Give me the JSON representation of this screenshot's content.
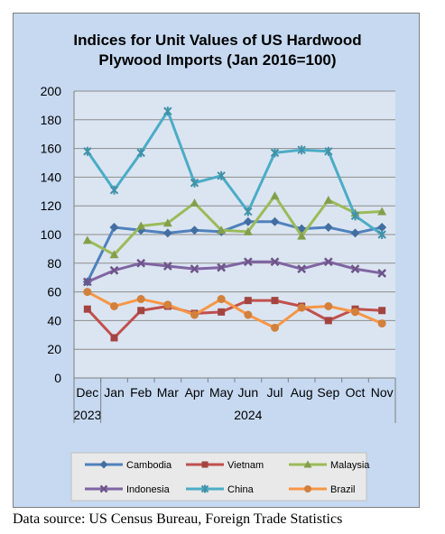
{
  "chart_data": {
    "type": "line",
    "title_lines": [
      "Indices for Unit Values of US Hardwood",
      "Plywood Imports (Jan 2016=100)"
    ],
    "categories": [
      "Dec",
      "Jan",
      "Feb",
      "Mar",
      "Apr",
      "May",
      "Jun",
      "Jul",
      "Aug",
      "Sep",
      "Oct",
      "Nov"
    ],
    "year_labels": [
      {
        "label": "2023",
        "start": 0,
        "end": 0
      },
      {
        "label": "2024",
        "start": 1,
        "end": 11
      }
    ],
    "ylim": [
      0,
      200
    ],
    "yticks": [
      0,
      20,
      40,
      60,
      80,
      100,
      120,
      140,
      160,
      180,
      200
    ],
    "grid": true,
    "legend_position": "bottom",
    "series": [
      {
        "name": "Cambodia",
        "color": "#4f81bd",
        "marker": "diamond",
        "values": [
          67,
          105,
          103,
          101,
          103,
          102,
          109,
          109,
          104,
          105,
          101,
          105
        ]
      },
      {
        "name": "Vietnam",
        "color": "#c0504d",
        "marker": "square",
        "values": [
          48,
          28,
          47,
          50,
          45,
          46,
          54,
          54,
          50,
          40,
          48,
          47
        ]
      },
      {
        "name": "Malaysia",
        "color": "#9bbb59",
        "marker": "triangle",
        "values": [
          96,
          86,
          106,
          108,
          122,
          103,
          102,
          127,
          99,
          124,
          115,
          116
        ]
      },
      {
        "name": "Indonesia",
        "color": "#8064a2",
        "marker": "x",
        "values": [
          67,
          75,
          80,
          78,
          76,
          77,
          81,
          81,
          76,
          81,
          76,
          73
        ]
      },
      {
        "name": "China",
        "color": "#4bacc6",
        "marker": "star",
        "values": [
          158,
          131,
          157,
          186,
          136,
          141,
          116,
          157,
          159,
          158,
          113,
          100
        ]
      },
      {
        "name": "Brazil",
        "color": "#f79646",
        "marker": "circle",
        "values": [
          60,
          50,
          55,
          51,
          44,
          55,
          44,
          35,
          49,
          50,
          46,
          38
        ]
      }
    ]
  },
  "source_note": "Data source: US Census Bureau, Foreign Trade Statistics"
}
